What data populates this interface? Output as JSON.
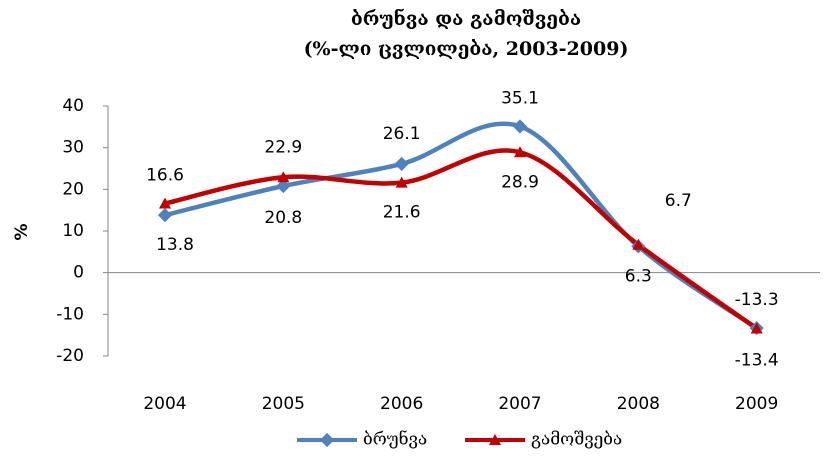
{
  "chart_data": {
    "type": "line",
    "title": "ბრუნვა და გამოშვება",
    "subtitle": "(%-ლი ცვლილება, 2003-2009)",
    "y_label": "%",
    "categories": [
      "2004",
      "2005",
      "2006",
      "2007",
      "2008",
      "2009"
    ],
    "series": [
      {
        "name": "ბრუნვა",
        "color": "#4f81bd",
        "values": [
          13.8,
          20.8,
          26.1,
          35.1,
          6.3,
          -13.3
        ]
      },
      {
        "name": "გამოშვება",
        "color": "#c00000",
        "values": [
          16.6,
          22.9,
          21.6,
          28.9,
          6.7,
          -13.4
        ]
      }
    ],
    "ylim": [
      -20,
      40
    ],
    "yticks": [
      -20,
      -10,
      0,
      10,
      20,
      30,
      40
    ],
    "legend": "bottom"
  }
}
